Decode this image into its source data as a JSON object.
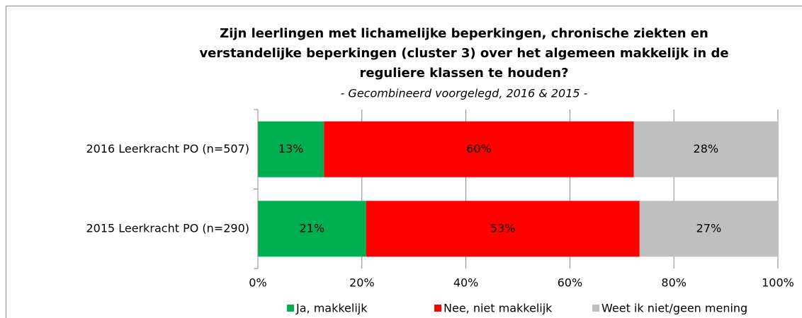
{
  "chart_data": {
    "type": "stacked_bar_horizontal",
    "title": [
      "Zijn leerlingen met lichamelijke beperkingen, chronische ziekten en",
      "verstandelijke beperkingen (cluster 3) over het algemeen makkelijk in de",
      "reguliere klassen te houden?"
    ],
    "subtitle": "- Gecombineerd voorgelegd, 2016 & 2015 -",
    "categories": [
      "2016 Leerkracht PO (n=507)",
      "2015 Leerkracht PO (n=290)"
    ],
    "series": [
      {
        "name": "Ja, makkelijk",
        "color": "#00b050",
        "values": [
          12.7,
          20.8
        ],
        "value_labels": [
          "13%",
          "21%"
        ]
      },
      {
        "name": "Nee, niet makkelijk",
        "color": "#ff0000",
        "values": [
          59.6,
          52.6
        ],
        "value_labels": [
          "60%",
          "53%"
        ]
      },
      {
        "name": "Weet ik niet/geen mening",
        "color": "#bfbfbf",
        "values": [
          27.7,
          26.6
        ],
        "value_labels": [
          "28%",
          "27%"
        ]
      }
    ],
    "xlim": [
      0,
      100
    ],
    "xticks": [
      {
        "value": 0,
        "label": "0%"
      },
      {
        "value": 20,
        "label": "20%"
      },
      {
        "value": 40,
        "label": "40%"
      },
      {
        "value": 60,
        "label": "60%"
      },
      {
        "value": 80,
        "label": "80%"
      },
      {
        "value": 100,
        "label": "100%"
      }
    ],
    "grid": true,
    "legend": "bottom"
  }
}
